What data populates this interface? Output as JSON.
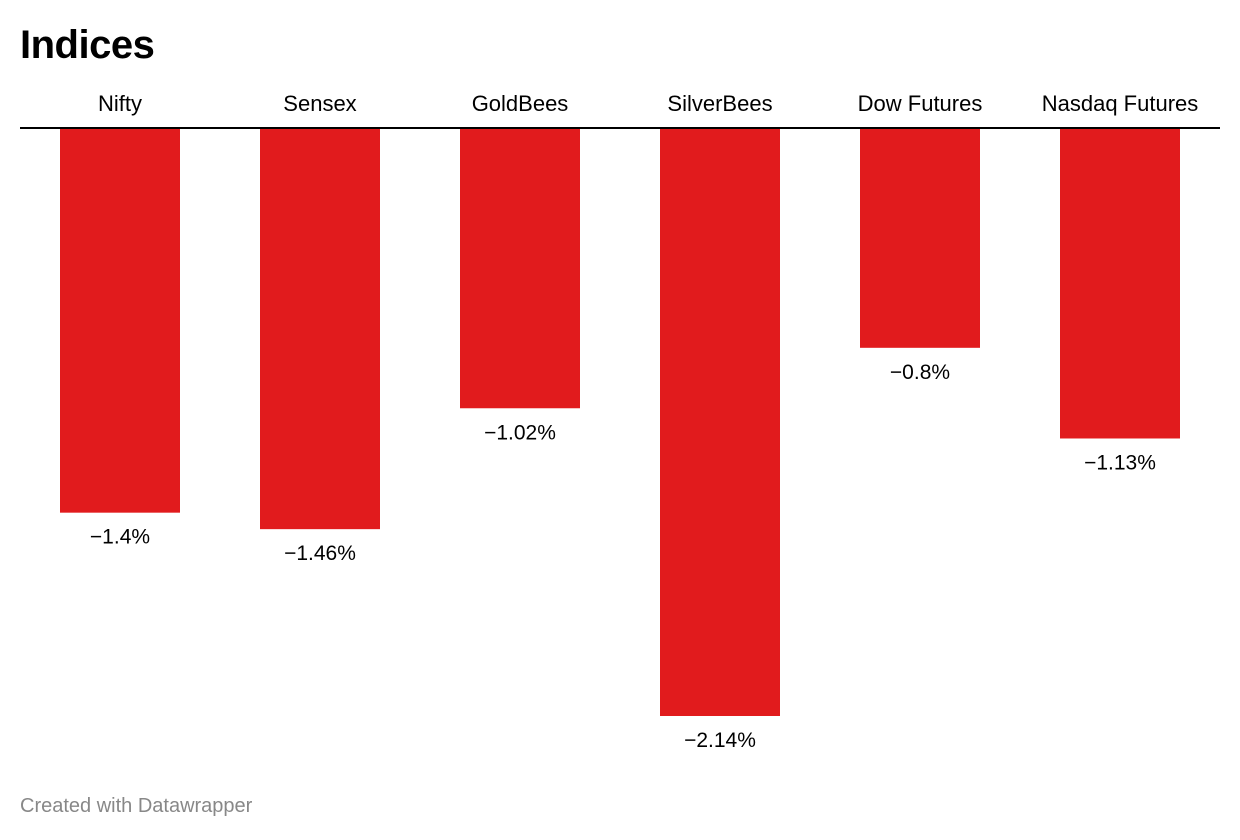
{
  "title": "Indices",
  "footer": {
    "credit": "Created with Datawrapper"
  },
  "chart_data": {
    "type": "bar",
    "orientation": "vertical",
    "title": "Indices",
    "xlabel": "",
    "ylabel": "",
    "categories": [
      "Nifty",
      "Sensex",
      "GoldBees",
      "SilverBees",
      "Dow Futures",
      "Nasdaq Futures"
    ],
    "values": [
      -1.4,
      -1.46,
      -1.02,
      -2.14,
      -0.8,
      -1.13
    ],
    "value_labels": [
      "−1.4%",
      "−1.46%",
      "−1.02%",
      "−2.14%",
      "−0.8%",
      "−1.13%"
    ],
    "value_suffix": "%",
    "ylim": [
      -2.14,
      0
    ],
    "bar_color": "#e11b1d",
    "baseline_color": "#000000",
    "grid": false,
    "legend": "none"
  }
}
